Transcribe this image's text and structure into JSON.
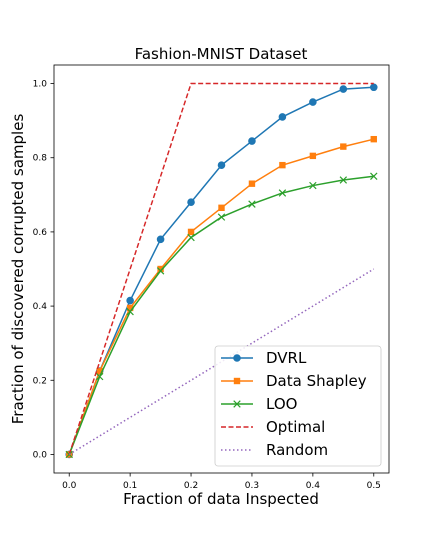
{
  "chart_data": {
    "type": "line",
    "title": "Fashion-MNIST Dataset",
    "xlabel": "Fraction of data Inspected",
    "ylabel": "Fraction of discovered corrupted samples",
    "xlim": [
      -0.025,
      0.525
    ],
    "ylim": [
      -0.05,
      1.05
    ],
    "xticks": [
      "0.0",
      "0.1",
      "0.2",
      "0.3",
      "0.4",
      "0.5"
    ],
    "yticks": [
      "0.0",
      "0.2",
      "0.4",
      "0.6",
      "0.8",
      "1.0"
    ],
    "grid": false,
    "legend_position": "bottom-right",
    "series": [
      {
        "name": "DVRL",
        "color": "#1f77b4",
        "marker": "circle",
        "linestyle": "solid",
        "x": [
          0.0,
          0.05,
          0.1,
          0.15,
          0.2,
          0.25,
          0.3,
          0.35,
          0.4,
          0.45,
          0.5
        ],
        "y": [
          0.0,
          0.225,
          0.415,
          0.58,
          0.68,
          0.78,
          0.845,
          0.91,
          0.95,
          0.985,
          0.99
        ]
      },
      {
        "name": "Data Shapley",
        "color": "#ff7f0e",
        "marker": "square",
        "linestyle": "solid",
        "x": [
          0.0,
          0.05,
          0.1,
          0.15,
          0.2,
          0.25,
          0.3,
          0.35,
          0.4,
          0.45,
          0.5
        ],
        "y": [
          0.0,
          0.225,
          0.395,
          0.5,
          0.6,
          0.665,
          0.73,
          0.78,
          0.805,
          0.83,
          0.85
        ]
      },
      {
        "name": "LOO",
        "color": "#2ca02c",
        "marker": "x",
        "linestyle": "solid",
        "x": [
          0.0,
          0.05,
          0.1,
          0.15,
          0.2,
          0.25,
          0.3,
          0.35,
          0.4,
          0.45,
          0.5
        ],
        "y": [
          0.0,
          0.21,
          0.385,
          0.495,
          0.585,
          0.64,
          0.675,
          0.705,
          0.725,
          0.74,
          0.75
        ]
      },
      {
        "name": "Optimal",
        "color": "#d62728",
        "marker": "none",
        "linestyle": "dashed",
        "x": [
          0.0,
          0.2,
          0.5
        ],
        "y": [
          0.0,
          1.0,
          1.0
        ]
      },
      {
        "name": "Random",
        "color": "#9467bd",
        "marker": "none",
        "linestyle": "dotted",
        "x": [
          0.0,
          0.5
        ],
        "y": [
          0.0,
          0.5
        ]
      }
    ]
  }
}
